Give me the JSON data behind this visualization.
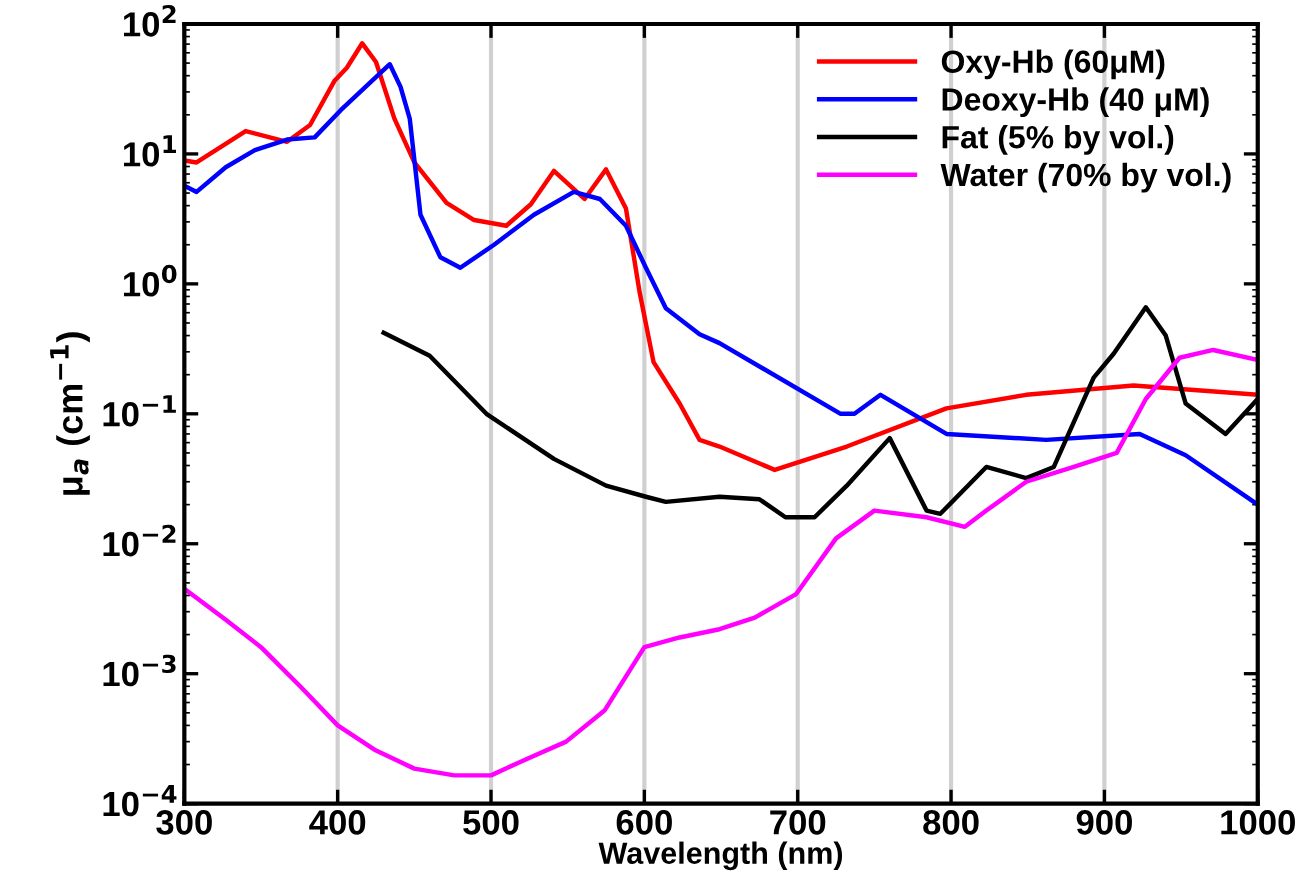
{
  "chart_data": {
    "type": "line",
    "xlabel": "Wavelength (nm)",
    "ylabel": "μ$_{a}$ (cm$^{−1}$)",
    "log": "y",
    "grid": "x",
    "legend": "top right",
    "line_style": "solid",
    "marker": "none",
    "xlim": [
      300,
      1000
    ],
    "xticks": [
      300,
      400,
      500,
      600,
      700,
      800,
      900,
      1000
    ],
    "ylim": [
      0.0001,
      100
    ],
    "yticks": [
      {
        "value": 0.0001,
        "label": "10$^{−4}$"
      },
      {
        "value": 0.001,
        "label": "10$^{−3}$"
      },
      {
        "value": 0.01,
        "label": "10$^{−2}$"
      },
      {
        "value": 0.1,
        "label": "10$^{−1}$"
      },
      {
        "value": 1,
        "label": "10$^{0}$"
      },
      {
        "value": 10,
        "label": "10$^{1}$"
      },
      {
        "value": 100,
        "label": "10$^{2}$"
      }
    ],
    "series": [
      {
        "name": "Oxy-Hb (60μM)",
        "color": "#ff0000",
        "x": [
          300,
          308,
          340,
          367,
          382,
          398,
          406,
          416,
          425,
          437,
          450,
          471,
          489,
          510,
          526,
          541,
          561,
          575,
          588,
          597,
          606,
          623,
          636,
          649,
          685,
          732,
          797,
          849,
          919,
          1000
        ],
        "values": [
          8.9,
          8.6,
          15,
          12.4,
          16.7,
          36.6,
          46,
          71,
          51,
          18.7,
          8.6,
          4.2,
          3.1,
          2.8,
          4.1,
          7.4,
          4.5,
          7.6,
          3.8,
          0.85,
          0.25,
          0.12,
          0.063,
          0.056,
          0.037,
          0.056,
          0.11,
          0.14,
          0.165,
          0.14
        ]
      },
      {
        "name": "Deoxy-Hb (40 μM)",
        "color": "#0000ff",
        "x": [
          300,
          308,
          327,
          346,
          367,
          385,
          402,
          434,
          441,
          447,
          454,
          467,
          480,
          502,
          528,
          554,
          571,
          588,
          601,
          614,
          636,
          649,
          728,
          737,
          754,
          797,
          862,
          923,
          953,
          1000
        ],
        "values": [
          5.7,
          5.1,
          7.9,
          10.7,
          12.9,
          13.4,
          21.7,
          49,
          32.8,
          18.7,
          3.4,
          1.6,
          1.33,
          2.0,
          3.4,
          5.1,
          4.5,
          2.8,
          1.33,
          0.65,
          0.41,
          0.35,
          0.1,
          0.1,
          0.14,
          0.07,
          0.063,
          0.07,
          0.048,
          0.02
        ]
      },
      {
        "name": "Fat (5% by vol.)",
        "color": "#000000",
        "x": [
          430,
          460,
          497,
          541,
          575,
          601,
          614,
          649,
          675,
          692,
          711,
          732,
          760,
          784,
          793,
          823,
          849,
          867,
          893,
          906,
          927,
          940,
          953,
          979,
          1000
        ],
        "values": [
          0.42,
          0.28,
          0.1,
          0.045,
          0.028,
          0.023,
          0.021,
          0.023,
          0.022,
          0.016,
          0.016,
          0.028,
          0.065,
          0.018,
          0.017,
          0.039,
          0.032,
          0.039,
          0.19,
          0.29,
          0.66,
          0.4,
          0.12,
          0.07,
          0.13
        ]
      },
      {
        "name": "Water (70% by vol.)",
        "color": "#ff00ff",
        "x": [
          300,
          327,
          350,
          376,
          400,
          424,
          450,
          476,
          500,
          523,
          549,
          574,
          600,
          623,
          649,
          672,
          699,
          725,
          750,
          784,
          809,
          823,
          849,
          880,
          908,
          927,
          949,
          971,
          1000
        ],
        "values": [
          0.0045,
          0.0026,
          0.0016,
          0.00079,
          0.0004,
          0.00026,
          0.000186,
          0.000165,
          0.000165,
          0.00022,
          0.0003,
          0.00052,
          0.0016,
          0.0019,
          0.0022,
          0.0027,
          0.0041,
          0.011,
          0.018,
          0.016,
          0.0135,
          0.018,
          0.03,
          0.039,
          0.05,
          0.13,
          0.27,
          0.31,
          0.26
        ]
      }
    ]
  }
}
